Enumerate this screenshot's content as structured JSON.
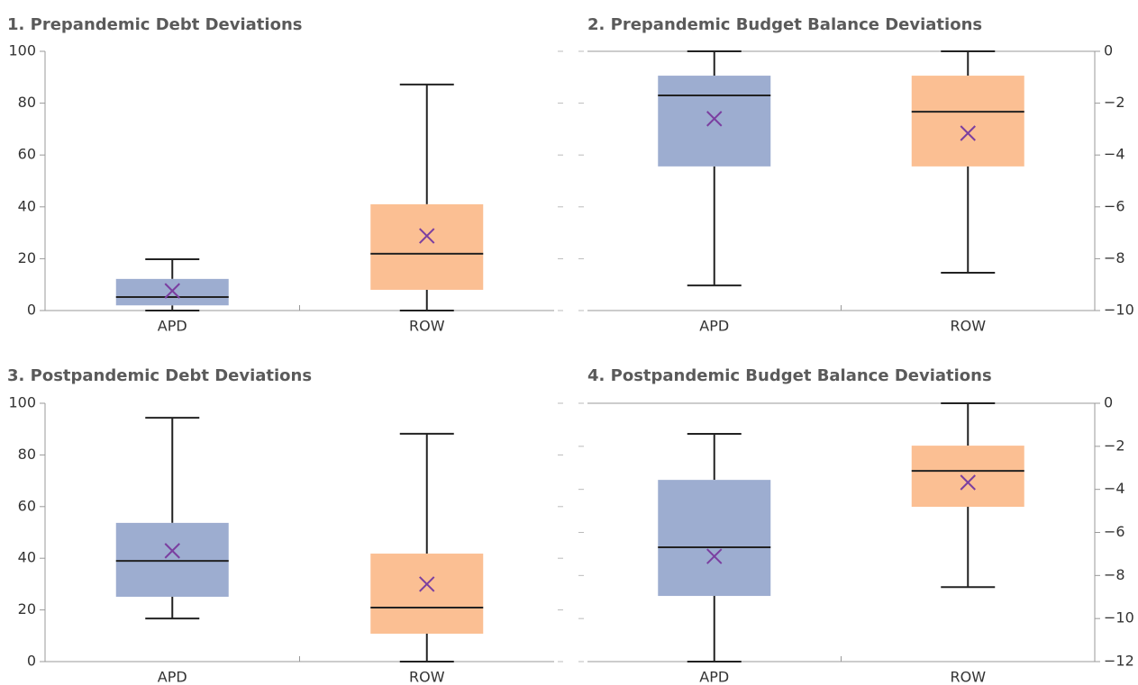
{
  "chart_data": [
    {
      "type": "box",
      "title": "1. Prepandemic Debt Deviations",
      "categories": [
        "APD",
        "ROW"
      ],
      "colors": [
        "#9dadd0",
        "#fbbf93"
      ],
      "mean_color": "#7b3fa0",
      "yaxis_side": "left",
      "ylim": [
        0,
        100
      ],
      "yticks": [
        0,
        20,
        40,
        60,
        80,
        100
      ],
      "boxes": [
        {
          "min": 0,
          "q1": 2,
          "median": 5.2,
          "q3": 12.2,
          "max": 19.8,
          "mean": 7.6
        },
        {
          "min": 0,
          "q1": 8,
          "median": 21.9,
          "q3": 41,
          "max": 87.2,
          "mean": 28.8
        }
      ]
    },
    {
      "type": "box",
      "title": "2. Prepandemic Budget Balance Deviations",
      "categories": [
        "APD",
        "ROW"
      ],
      "colors": [
        "#9dadd0",
        "#fbbf93"
      ],
      "mean_color": "#7b3fa0",
      "yaxis_side": "right",
      "ylim": [
        -10,
        0
      ],
      "yticks": [
        0,
        {
          "value": -2,
          "label": "−2"
        },
        {
          "value": -4,
          "label": "−4"
        },
        {
          "value": -6,
          "label": "−6"
        },
        {
          "value": -8,
          "label": "−8"
        },
        {
          "value": -10,
          "label": "−10"
        }
      ],
      "boxes": [
        {
          "min": -9.03,
          "q1": -4.44,
          "median": -1.7,
          "q3": -0.94,
          "max": 0,
          "mean": -2.6
        },
        {
          "min": -8.54,
          "q1": -4.44,
          "median": -2.33,
          "q3": -0.94,
          "max": 0,
          "mean": -3.16
        }
      ]
    },
    {
      "type": "box",
      "title": "3. Postpandemic Debt Deviations",
      "categories": [
        "APD",
        "ROW"
      ],
      "colors": [
        "#9dadd0",
        "#fbbf93"
      ],
      "mean_color": "#7b3fa0",
      "yaxis_side": "left",
      "ylim": [
        0,
        100
      ],
      "yticks": [
        0,
        20,
        40,
        60,
        80,
        100
      ],
      "boxes": [
        {
          "min": 16.7,
          "q1": 25.1,
          "median": 39,
          "q3": 53.7,
          "max": 94.4,
          "mean": 42.9
        },
        {
          "min": 0,
          "q1": 10.8,
          "median": 20.9,
          "q3": 41.8,
          "max": 88.2,
          "mean": 30
        }
      ]
    },
    {
      "type": "box",
      "title": "4. Postpandemic Budget Balance Deviations",
      "categories": [
        "APD",
        "ROW"
      ],
      "colors": [
        "#9dadd0",
        "#fbbf93"
      ],
      "mean_color": "#7b3fa0",
      "yaxis_side": "right",
      "ylim": [
        -12,
        0
      ],
      "yticks": [
        0,
        {
          "value": -2,
          "label": "−2"
        },
        {
          "value": -4,
          "label": "−4"
        },
        {
          "value": -6,
          "label": "−6"
        },
        {
          "value": -8,
          "label": "−8"
        },
        {
          "value": -10,
          "label": "−10"
        },
        {
          "value": -12,
          "label": "−12"
        }
      ],
      "boxes": [
        {
          "min": -12,
          "q1": -8.95,
          "median": -6.69,
          "q3": -3.56,
          "max": -1.42,
          "mean": -7.11
        },
        {
          "min": -8.54,
          "q1": -4.81,
          "median": -3.14,
          "q3": -1.97,
          "max": 0,
          "mean": -3.68
        }
      ]
    }
  ]
}
